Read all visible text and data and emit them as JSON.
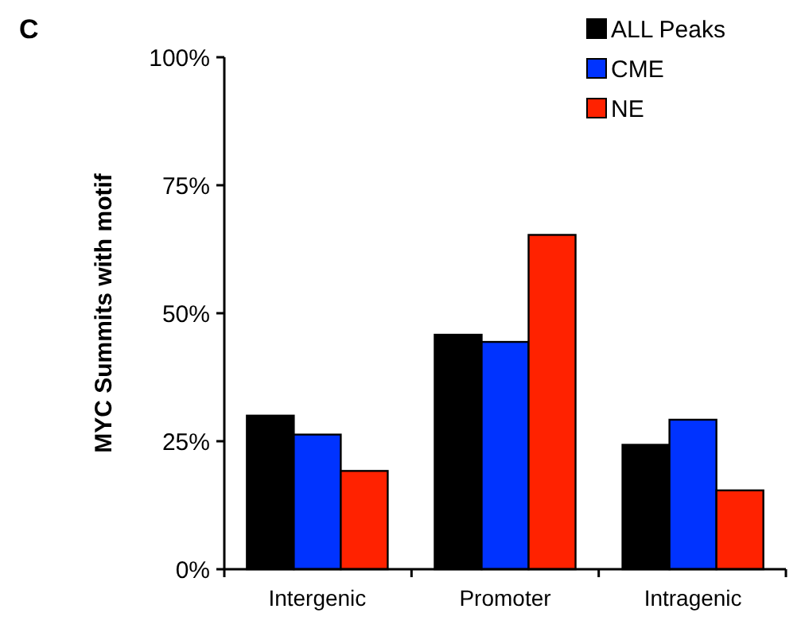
{
  "chart_data": {
    "type": "bar",
    "title": "C",
    "ylabel": "MYC Summits with motif",
    "categories": [
      "Intergenic",
      "Promoter",
      "Intragenic"
    ],
    "series": [
      {
        "name": "ALL Peaks",
        "color": "#000000",
        "values": [
          30,
          45.8,
          24.3
        ]
      },
      {
        "name": "CME",
        "color": "#0033ff",
        "values": [
          26.3,
          44.4,
          29.2
        ]
      },
      {
        "name": "NE",
        "color": "#ff2200",
        "values": [
          19.2,
          65.3,
          15.4
        ]
      }
    ],
    "ylim": [
      0,
      100
    ],
    "yticks": [
      {
        "value": 0,
        "label": "0%"
      },
      {
        "value": 25,
        "label": "25%"
      },
      {
        "value": 50,
        "label": "50%"
      },
      {
        "value": 75,
        "label": "75%"
      },
      {
        "value": 100,
        "label": "100%"
      }
    ],
    "grid": false,
    "legend": "top right"
  }
}
